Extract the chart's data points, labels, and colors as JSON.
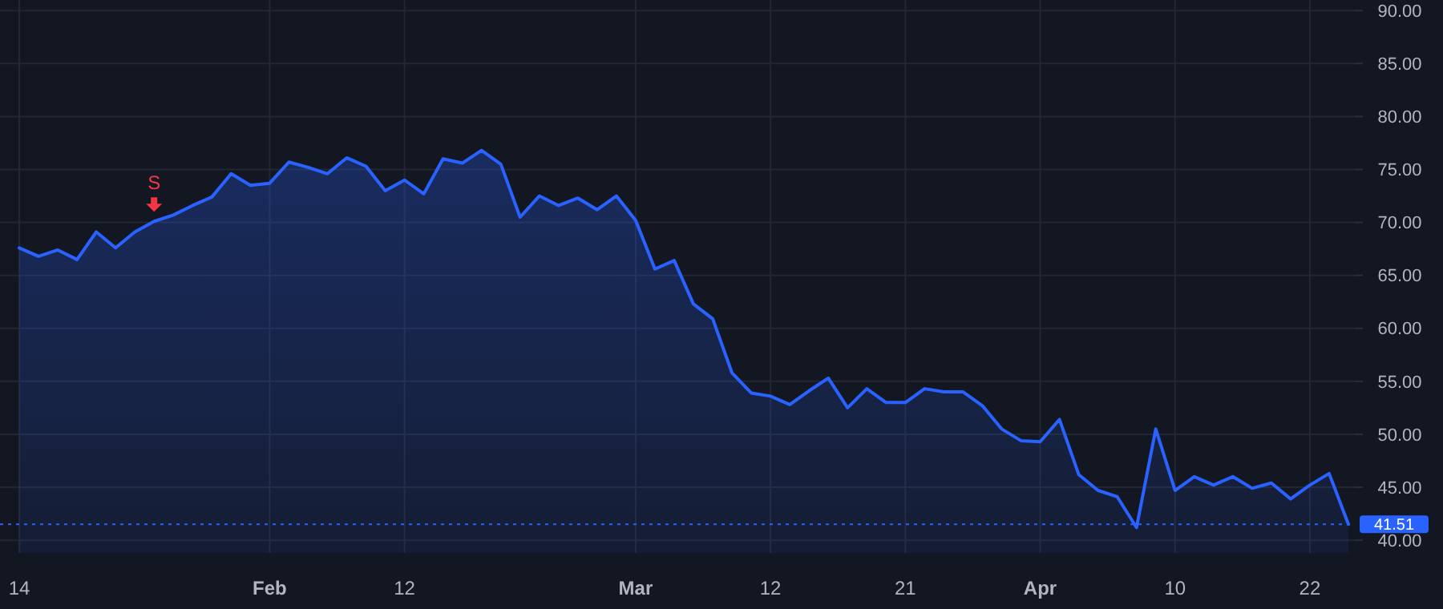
{
  "chart_data": {
    "type": "area",
    "categories": [
      "14",
      null,
      null,
      null,
      null,
      null,
      null,
      null,
      null,
      null,
      null,
      null,
      null,
      "Feb",
      null,
      null,
      null,
      null,
      null,
      null,
      "12",
      null,
      null,
      null,
      null,
      null,
      null,
      null,
      null,
      null,
      null,
      null,
      "Mar",
      null,
      null,
      null,
      null,
      null,
      null,
      "12",
      null,
      null,
      null,
      null,
      null,
      null,
      "21",
      null,
      null,
      null,
      null,
      null,
      null,
      "Apr",
      null,
      null,
      null,
      null,
      null,
      null,
      "10",
      null,
      null,
      null,
      null,
      null,
      null,
      "22",
      null,
      null
    ],
    "series": [
      {
        "color": "#2962ff",
        "values": [
          67.6,
          66.8,
          67.4,
          66.5,
          69.1,
          67.6,
          69.1,
          70.1,
          70.7,
          71.6,
          72.4,
          74.6,
          73.5,
          73.7,
          75.7,
          75.2,
          74.6,
          76.1,
          75.3,
          73.0,
          74.0,
          72.7,
          76.0,
          75.6,
          76.8,
          75.5,
          70.5,
          72.5,
          71.6,
          72.3,
          71.2,
          72.5,
          70.2,
          65.6,
          66.4,
          62.3,
          60.9,
          55.8,
          53.9,
          53.6,
          52.8,
          54.1,
          55.3,
          52.5,
          54.3,
          53.0,
          53.0,
          54.3,
          54.0,
          54.0,
          52.7,
          50.5,
          49.4,
          49.3,
          51.4,
          46.2,
          44.7,
          44.1,
          41.2,
          50.5,
          44.7,
          46.0,
          45.2,
          46.0,
          44.9,
          45.4,
          43.9,
          45.2,
          46.3,
          41.51
        ]
      }
    ],
    "ylim": [
      38.8,
      91
    ],
    "yticks": [
      {
        "value": 40,
        "label": "40.00"
      },
      {
        "value": 45,
        "label": "45.00"
      },
      {
        "value": 50,
        "label": "50.00"
      },
      {
        "value": 55,
        "label": "55.00"
      },
      {
        "value": 60,
        "label": "60.00"
      },
      {
        "value": 65,
        "label": "65.00"
      },
      {
        "value": 70,
        "label": "70.00"
      },
      {
        "value": 75,
        "label": "75.00"
      },
      {
        "value": 80,
        "label": "80.00"
      },
      {
        "value": 85,
        "label": "85.00"
      },
      {
        "value": 90,
        "label": "90.00"
      }
    ],
    "grid": true,
    "ref_lines": [
      {
        "axis": "y",
        "value": 41.51,
        "label": "41.51",
        "color": "#2962ff",
        "line_style": "dotted"
      }
    ],
    "annotations": [
      {
        "text": "S",
        "y": 70.1
      }
    ]
  }
}
